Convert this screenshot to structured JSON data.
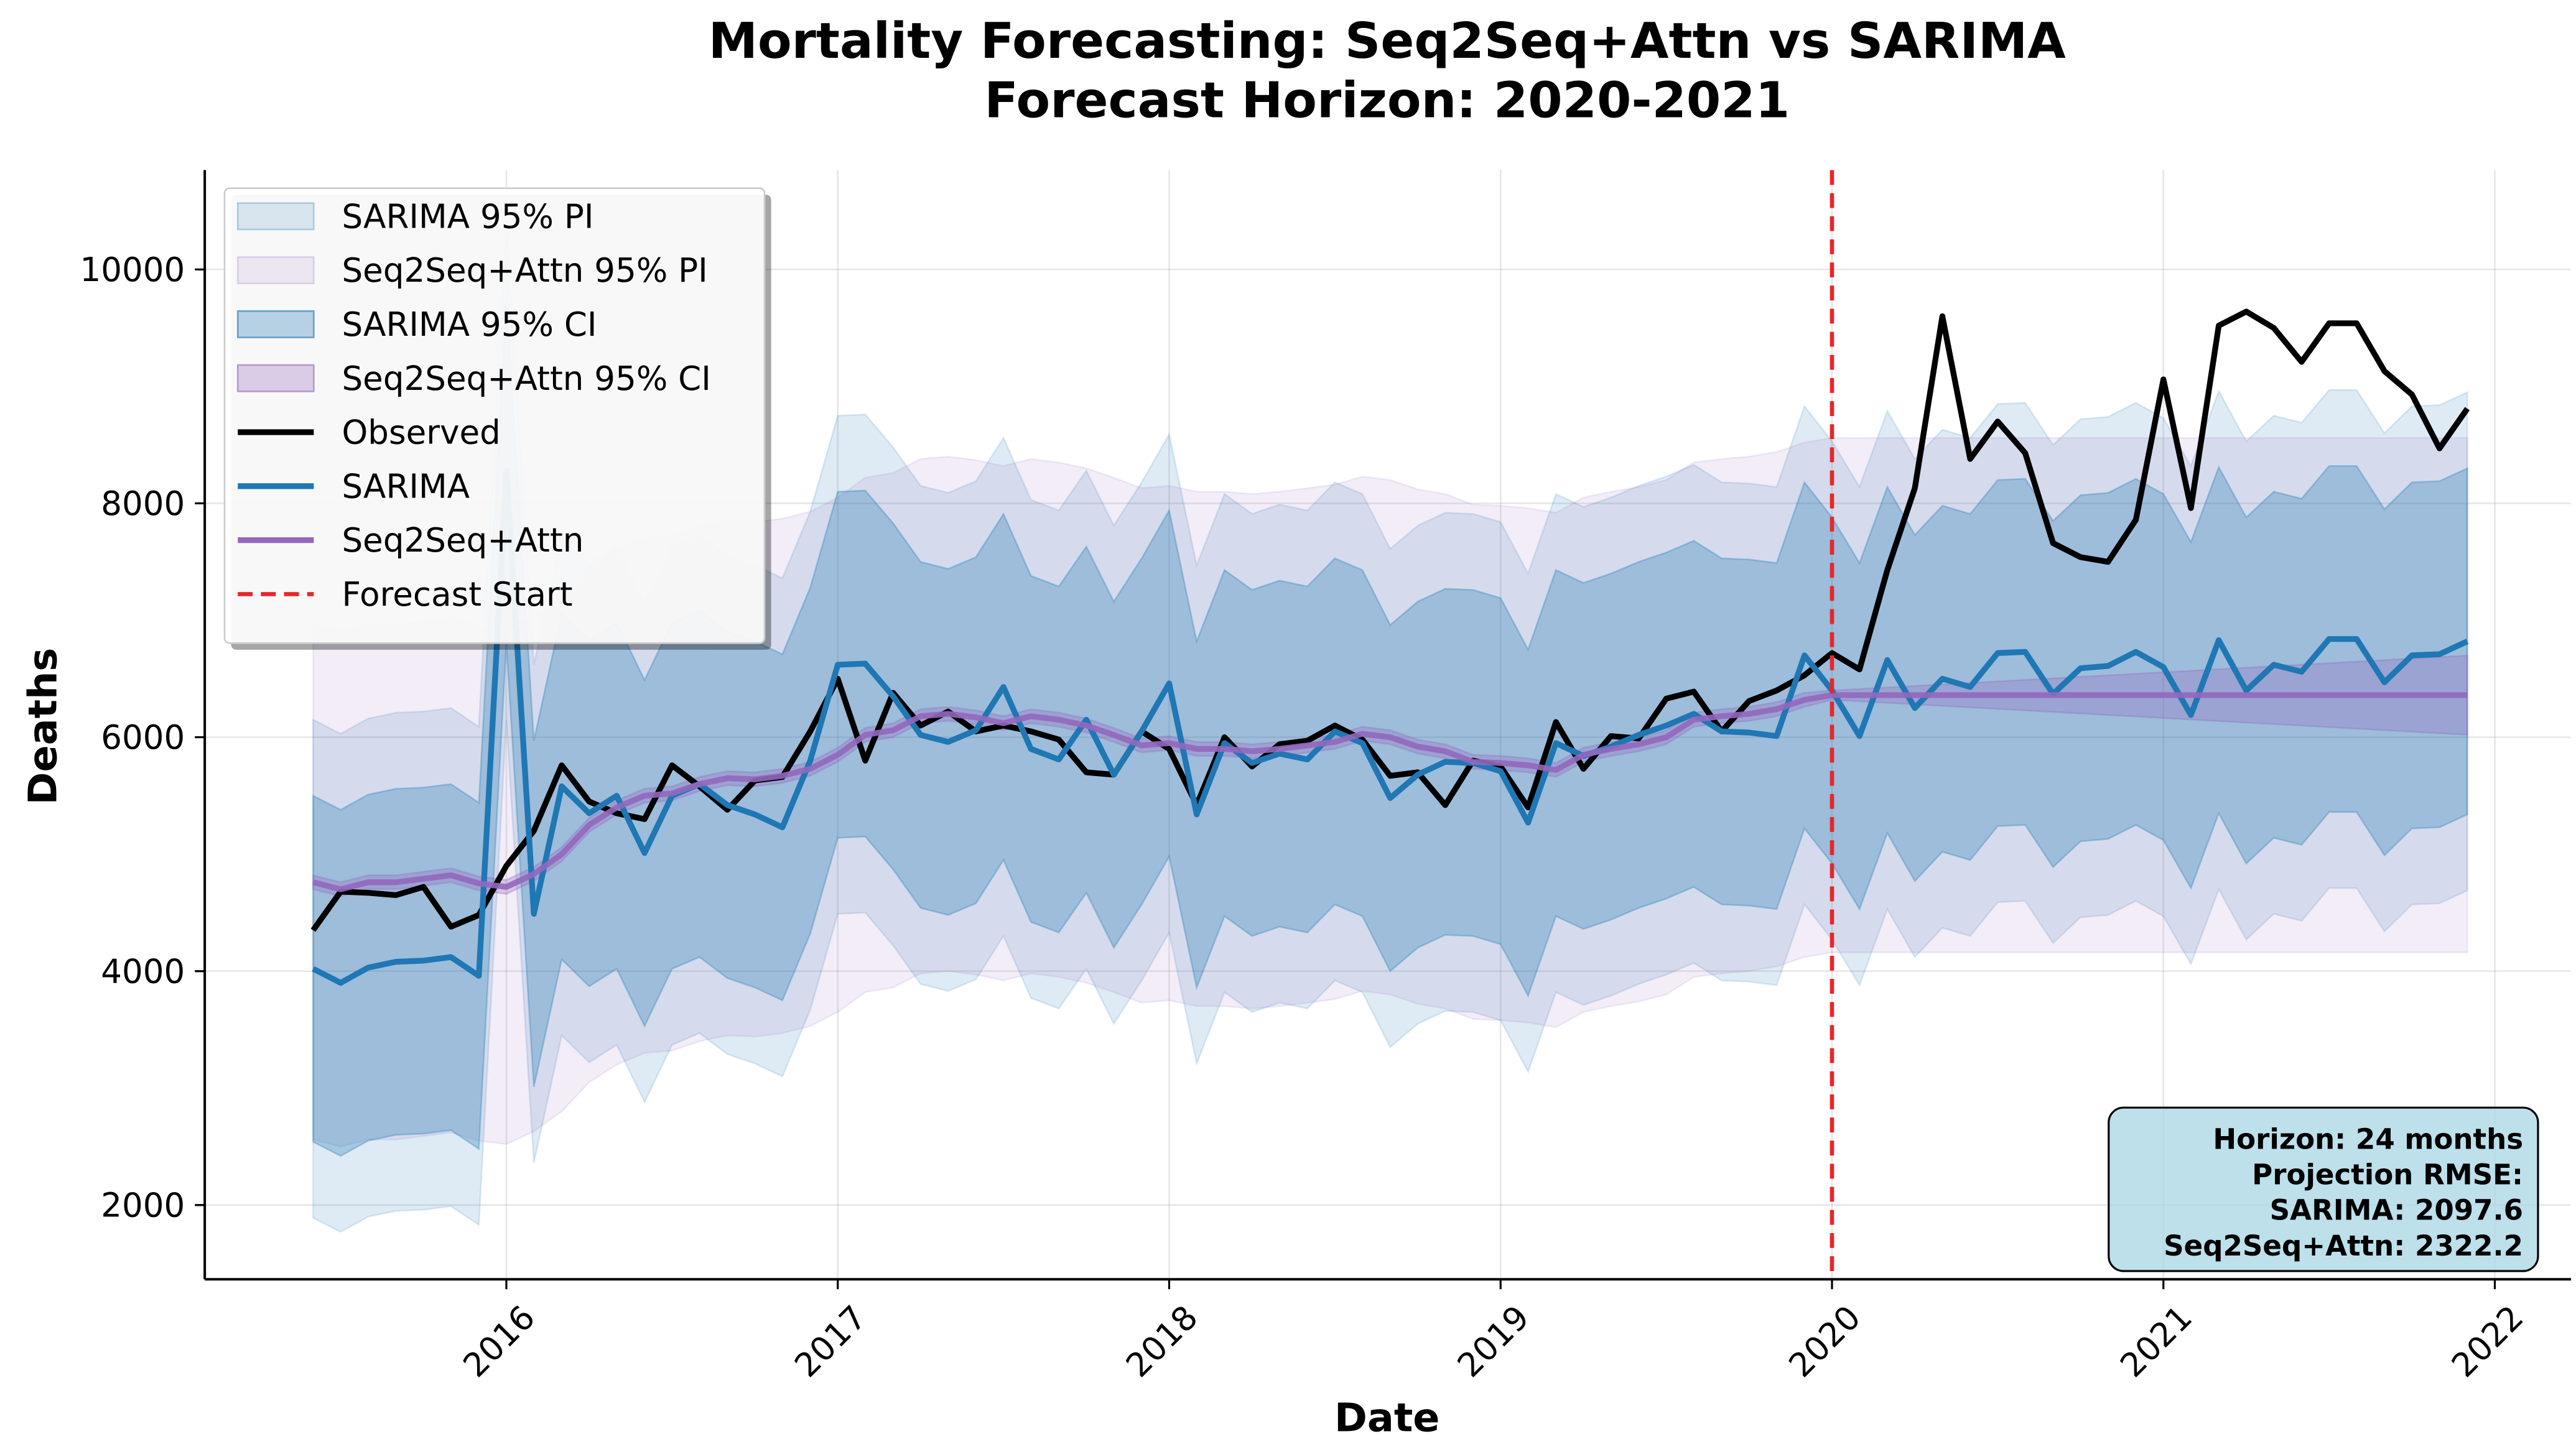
{
  "chart_data": {
    "type": "line",
    "title": "Mortality Forecasting: Seq2Seq+Attn vs SARIMA",
    "subtitle": "Forecast Horizon: 2020-2021",
    "xlabel": "Date",
    "ylabel": "Deaths",
    "grid": true,
    "legend": "upper left",
    "xlim": [
      2015.09,
      2022.23
    ],
    "xticks": [
      2016,
      2017,
      2018,
      2019,
      2020,
      2021,
      2022
    ],
    "ylim": [
      1365,
      10850
    ],
    "yticks": [
      2000,
      4000,
      6000,
      8000,
      10000
    ],
    "x": [
      2015.417,
      2015.5,
      2015.583,
      2015.667,
      2015.75,
      2015.833,
      2015.917,
      2016,
      2016.083,
      2016.167,
      2016.25,
      2016.333,
      2016.417,
      2016.5,
      2016.583,
      2016.667,
      2016.75,
      2016.833,
      2016.917,
      2017,
      2017.083,
      2017.167,
      2017.25,
      2017.333,
      2017.417,
      2017.5,
      2017.583,
      2017.667,
      2017.75,
      2017.833,
      2017.917,
      2018,
      2018.083,
      2018.167,
      2018.25,
      2018.333,
      2018.417,
      2018.5,
      2018.583,
      2018.667,
      2018.75,
      2018.833,
      2018.917,
      2019,
      2019.083,
      2019.167,
      2019.25,
      2019.333,
      2019.417,
      2019.5,
      2019.583,
      2019.667,
      2019.75,
      2019.833,
      2019.917,
      2020,
      2020.083,
      2020.167,
      2020.25,
      2020.333,
      2020.417,
      2020.5,
      2020.583,
      2020.667,
      2020.75,
      2020.833,
      2020.917,
      2021,
      2021.083,
      2021.167,
      2021.25,
      2021.333,
      2021.417,
      2021.5,
      2021.583,
      2021.667,
      2021.75,
      2021.833,
      2021.917
    ],
    "bands": [
      {
        "name": "SARIMA 95% PI",
        "color": "#1f77b4",
        "opacity": 0.15,
        "upper": [
          6150,
          6030,
          6160,
          6210,
          6220,
          6250,
          6090,
          10410,
          6620,
          7710,
          7480,
          7630,
          7140,
          7630,
          7730,
          7550,
          7470,
          7360,
          7930,
          8750,
          8760,
          8480,
          8150,
          8090,
          8190,
          8560,
          8030,
          7940,
          8280,
          7810,
          8180,
          8590,
          7470,
          8080,
          7910,
          7990,
          7940,
          8180,
          8080,
          7610,
          7810,
          7920,
          7910,
          7840,
          7400,
          8080,
          7970,
          8050,
          8150,
          8230,
          8330,
          8180,
          8170,
          8140,
          8830,
          8530,
          8140,
          8790,
          8380,
          8630,
          8560,
          8850,
          8860,
          8500,
          8720,
          8740,
          8860,
          8730,
          8320,
          8960,
          8530,
          8750,
          8690,
          8970,
          8970,
          8600,
          8830,
          8840,
          8950
        ],
        "lower": [
          1890,
          1770,
          1900,
          1950,
          1960,
          1990,
          1830,
          6150,
          2360,
          3450,
          3220,
          3370,
          2880,
          3370,
          3470,
          3290,
          3210,
          3100,
          3670,
          4490,
          4500,
          4220,
          3890,
          3830,
          3930,
          4300,
          3770,
          3680,
          4020,
          3550,
          3920,
          4330,
          3210,
          3820,
          3650,
          3730,
          3680,
          3920,
          3820,
          3350,
          3550,
          3660,
          3650,
          3580,
          3140,
          3820,
          3710,
          3790,
          3890,
          3970,
          4070,
          3920,
          3910,
          3880,
          4570,
          4270,
          3880,
          4530,
          4120,
          4370,
          4300,
          4590,
          4600,
          4240,
          4460,
          4480,
          4600,
          4470,
          4060,
          4700,
          4270,
          4490,
          4430,
          4710,
          4710,
          4340,
          4570,
          4580,
          4690
        ]
      },
      {
        "name": "Seq2Seq+Attn 95% PI",
        "color": "#9467bd",
        "opacity": 0.12,
        "upper": [
          6960,
          6900,
          6960,
          6960,
          6990,
          7020,
          6950,
          6920,
          7030,
          7200,
          7450,
          7600,
          7700,
          7720,
          7800,
          7850,
          7840,
          7870,
          7930,
          8050,
          8220,
          8260,
          8380,
          8400,
          8370,
          8320,
          8380,
          8350,
          8300,
          8220,
          8130,
          8150,
          8100,
          8100,
          8080,
          8100,
          8130,
          8160,
          8230,
          8200,
          8120,
          8080,
          7990,
          7980,
          7960,
          7920,
          8050,
          8100,
          8140,
          8200,
          8350,
          8380,
          8400,
          8440,
          8520,
          8560,
          8560,
          8560,
          8560,
          8560,
          8560,
          8560,
          8560,
          8560,
          8560,
          8560,
          8560,
          8560,
          8560,
          8560,
          8560,
          8560,
          8560,
          8560,
          8560,
          8560,
          8560,
          8560,
          8560
        ],
        "lower": [
          2560,
          2500,
          2560,
          2560,
          2590,
          2620,
          2550,
          2520,
          2630,
          2800,
          3050,
          3200,
          3300,
          3320,
          3400,
          3450,
          3440,
          3470,
          3530,
          3650,
          3820,
          3860,
          3980,
          4000,
          3970,
          3920,
          3980,
          3950,
          3900,
          3820,
          3730,
          3750,
          3700,
          3700,
          3680,
          3700,
          3730,
          3760,
          3830,
          3800,
          3720,
          3680,
          3590,
          3580,
          3560,
          3520,
          3650,
          3700,
          3740,
          3800,
          3950,
          3980,
          4000,
          4040,
          4120,
          4160,
          4160,
          4160,
          4160,
          4160,
          4160,
          4160,
          4160,
          4160,
          4160,
          4160,
          4160,
          4160,
          4160,
          4160,
          4160,
          4160,
          4160,
          4160,
          4160,
          4160,
          4160,
          4160,
          4160
        ]
      },
      {
        "name": "SARIMA 95% CI",
        "color": "#1f77b4",
        "opacity": 0.3,
        "upper": [
          5500,
          5380,
          5510,
          5560,
          5570,
          5600,
          5440,
          9760,
          5970,
          7060,
          6830,
          6980,
          6490,
          6980,
          7080,
          6900,
          6820,
          6710,
          7280,
          8100,
          8110,
          7830,
          7500,
          7440,
          7540,
          7910,
          7380,
          7290,
          7630,
          7160,
          7530,
          7940,
          6820,
          7430,
          7260,
          7340,
          7290,
          7530,
          7430,
          6960,
          7160,
          7270,
          7260,
          7190,
          6750,
          7430,
          7320,
          7400,
          7500,
          7580,
          7680,
          7530,
          7520,
          7490,
          8180,
          7880,
          7490,
          8140,
          7730,
          7980,
          7910,
          8200,
          8210,
          7850,
          8070,
          8090,
          8210,
          8080,
          7670,
          8310,
          7880,
          8100,
          8040,
          8320,
          8320,
          7950,
          8180,
          8190,
          8300
        ],
        "lower": [
          2540,
          2420,
          2550,
          2600,
          2610,
          2640,
          2480,
          6800,
          3010,
          4100,
          3870,
          4020,
          3530,
          4020,
          4120,
          3940,
          3860,
          3750,
          4320,
          5140,
          5150,
          4870,
          4540,
          4480,
          4580,
          4950,
          4420,
          4330,
          4670,
          4200,
          4570,
          4980,
          3860,
          4470,
          4300,
          4380,
          4330,
          4570,
          4470,
          4000,
          4200,
          4310,
          4300,
          4230,
          3790,
          4470,
          4360,
          4440,
          4540,
          4620,
          4720,
          4570,
          4560,
          4530,
          5220,
          4920,
          4530,
          5180,
          4770,
          5020,
          4950,
          5240,
          5250,
          4890,
          5110,
          5130,
          5250,
          5120,
          4710,
          5350,
          4920,
          5140,
          5080,
          5360,
          5360,
          4990,
          5220,
          5230,
          5340
        ]
      },
      {
        "name": "Seq2Seq+Attn 95% CI",
        "color": "#9467bd",
        "opacity": 0.3,
        "upper": [
          4820,
          4760,
          4820,
          4820,
          4850,
          4880,
          4810,
          4780,
          4890,
          5060,
          5310,
          5460,
          5560,
          5580,
          5660,
          5710,
          5700,
          5730,
          5790,
          5910,
          6080,
          6120,
          6240,
          6260,
          6230,
          6180,
          6240,
          6210,
          6160,
          6080,
          5990,
          6010,
          5960,
          5960,
          5940,
          5960,
          5990,
          6020,
          6090,
          6060,
          5980,
          5940,
          5850,
          5840,
          5820,
          5780,
          5910,
          5960,
          6000,
          6060,
          6210,
          6240,
          6260,
          6300,
          6380,
          6400,
          6413,
          6426,
          6439,
          6452,
          6465,
          6478,
          6491,
          6504,
          6517,
          6530,
          6543,
          6556,
          6569,
          6582,
          6595,
          6608,
          6621,
          6634,
          6647,
          6660,
          6673,
          6686,
          6699
        ],
        "lower": [
          4700,
          4640,
          4700,
          4700,
          4730,
          4760,
          4690,
          4660,
          4770,
          4940,
          5190,
          5340,
          5440,
          5460,
          5540,
          5590,
          5580,
          5610,
          5670,
          5790,
          5960,
          6000,
          6120,
          6140,
          6110,
          6060,
          6120,
          6090,
          6040,
          5960,
          5870,
          5890,
          5840,
          5840,
          5820,
          5840,
          5870,
          5900,
          5970,
          5940,
          5860,
          5820,
          5730,
          5720,
          5700,
          5660,
          5790,
          5840,
          5880,
          5940,
          6090,
          6120,
          6140,
          6180,
          6260,
          6320,
          6307,
          6294,
          6281,
          6268,
          6255,
          6242,
          6229,
          6216,
          6203,
          6190,
          6177,
          6164,
          6151,
          6138,
          6125,
          6112,
          6099,
          6086,
          6073,
          6060,
          6047,
          6034,
          6021
        ]
      }
    ],
    "series": [
      {
        "name": "Observed",
        "color": "#000000",
        "values": [
          4350,
          4680,
          4670,
          4650,
          4720,
          4380,
          4480,
          4900,
          5200,
          5760,
          5450,
          5350,
          5300,
          5760,
          5580,
          5380,
          5630,
          5660,
          6050,
          6500,
          5800,
          6380,
          6100,
          6220,
          6050,
          6100,
          6050,
          5980,
          5700,
          5680,
          6050,
          5900,
          5420,
          6000,
          5750,
          5940,
          5970,
          6100,
          5980,
          5670,
          5700,
          5420,
          5800,
          5750,
          5400,
          6130,
          5730,
          6010,
          5990,
          6330,
          6390,
          6050,
          6310,
          6400,
          6530,
          6720,
          6580,
          7430,
          8130,
          9600,
          8380,
          8700,
          8430,
          7660,
          7540,
          7500,
          7860,
          9060,
          7960,
          9520,
          9640,
          9500,
          9210,
          9540,
          9540,
          9130,
          8930,
          8470,
          8810
        ]
      },
      {
        "name": "SARIMA",
        "color": "#1f77b4",
        "values": [
          4020,
          3900,
          4030,
          4080,
          4090,
          4120,
          3960,
          8280,
          4490,
          5580,
          5350,
          5500,
          5010,
          5500,
          5600,
          5420,
          5340,
          5230,
          5800,
          6620,
          6630,
          6350,
          6020,
          5960,
          6060,
          6430,
          5900,
          5810,
          6150,
          5680,
          6050,
          6460,
          5340,
          5950,
          5780,
          5860,
          5810,
          6050,
          5950,
          5480,
          5680,
          5790,
          5780,
          5710,
          5270,
          5950,
          5840,
          5920,
          6020,
          6100,
          6200,
          6050,
          6040,
          6010,
          6700,
          6400,
          6010,
          6660,
          6250,
          6500,
          6430,
          6720,
          6730,
          6370,
          6590,
          6610,
          6730,
          6600,
          6190,
          6830,
          6400,
          6620,
          6560,
          6840,
          6840,
          6470,
          6700,
          6710,
          6820
        ]
      },
      {
        "name": "Seq2Seq+Attn",
        "color": "#9467bd",
        "values": [
          4760,
          4700,
          4760,
          4760,
          4790,
          4820,
          4750,
          4720,
          4830,
          5000,
          5250,
          5400,
          5500,
          5520,
          5600,
          5650,
          5640,
          5670,
          5730,
          5850,
          6020,
          6060,
          6180,
          6200,
          6170,
          6120,
          6180,
          6150,
          6100,
          6020,
          5930,
          5950,
          5900,
          5900,
          5880,
          5900,
          5930,
          5960,
          6030,
          6000,
          5920,
          5880,
          5790,
          5780,
          5760,
          5720,
          5850,
          5900,
          5940,
          6000,
          6150,
          6180,
          6200,
          6240,
          6320,
          6360,
          6360,
          6360,
          6360,
          6360,
          6360,
          6360,
          6360,
          6360,
          6360,
          6360,
          6360,
          6360,
          6360,
          6360,
          6360,
          6360,
          6360,
          6360,
          6360,
          6360,
          6360,
          6360,
          6360
        ]
      }
    ],
    "forecast_start": {
      "name": "Forecast Start",
      "x": 2020,
      "color": "#e8262b"
    },
    "annotation": [
      "Horizon: 24 months",
      "Projection RMSE:",
      "SARIMA: 2097.6",
      "Seq2Seq+Attn: 2322.2"
    ],
    "annotation_color": "#add8e6"
  }
}
